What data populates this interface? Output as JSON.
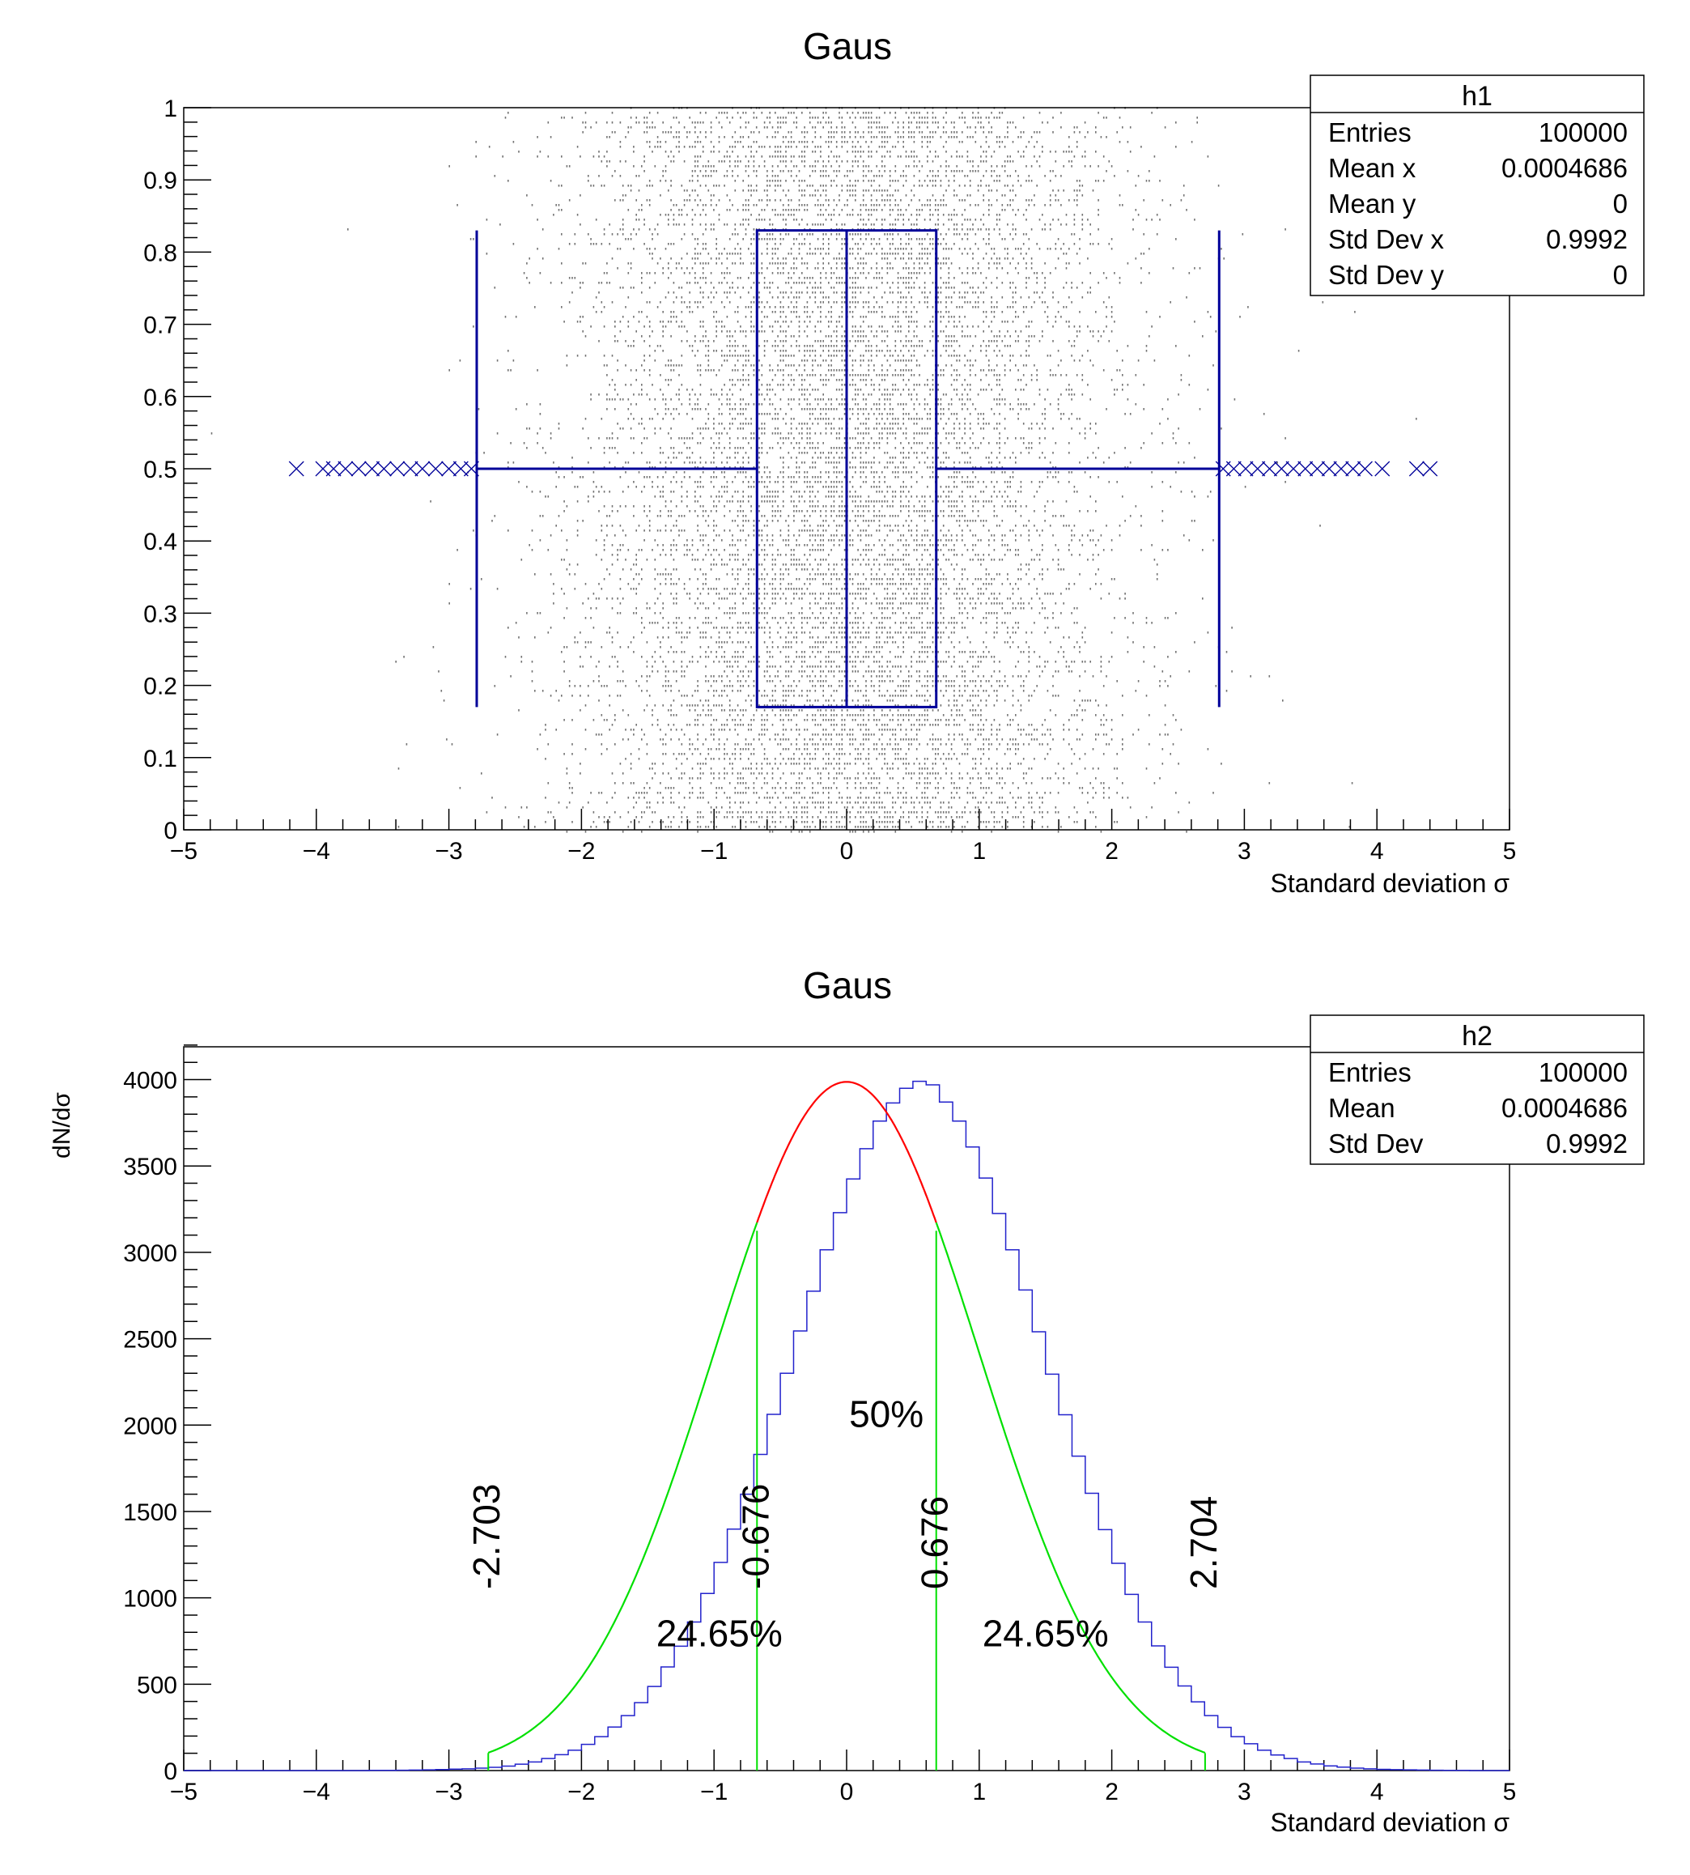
{
  "colors": {
    "box": "#000099",
    "hist": "#2222cc",
    "fit_core": "#ff0000",
    "fit_tails": "#00e000",
    "scatter": "#000000"
  },
  "chart_data": [
    {
      "type": "candle",
      "title": "Gaus",
      "xlabel": "Standard deviation σ",
      "ylabel": "",
      "xlim": [
        -5,
        5
      ],
      "ylim": [
        0,
        1
      ],
      "xticks": [
        "−5",
        "−4",
        "−3",
        "−2",
        "−1",
        "0",
        "1",
        "2",
        "3",
        "4",
        "5"
      ],
      "yticks": [
        "0",
        "0.1",
        "0.2",
        "0.3",
        "0.4",
        "0.5",
        "0.6",
        "0.7",
        "0.8",
        "0.9",
        "1"
      ],
      "box": {
        "whisker_low": -2.79,
        "q1": -0.676,
        "median": 0.0,
        "q3": 0.676,
        "whisker_high": 2.81,
        "y_center": 0.5,
        "y_low": 0.17,
        "y_high": 0.83
      },
      "outliers": [
        -4.15,
        -3.95,
        -3.87,
        -3.78,
        -3.68,
        -3.58,
        -3.49,
        -3.39,
        -3.29,
        -3.2,
        -3.1,
        -3.0,
        -2.91,
        -2.83,
        2.84,
        2.92,
        3.01,
        3.1,
        3.19,
        3.28,
        3.37,
        3.46,
        3.55,
        3.64,
        3.73,
        3.82,
        3.91,
        4.04,
        4.3,
        4.4
      ],
      "outlier_y": 0.5,
      "scatter": {
        "entries": 100000,
        "distribution": "gaussian",
        "mean": 0,
        "sigma": 1,
        "y": "uniform 0-1"
      },
      "stats": {
        "name": "h1",
        "rows": [
          {
            "label": "Entries",
            "value": "100000"
          },
          {
            "label": "Mean x",
            "value": "0.0004686"
          },
          {
            "label": "Mean y",
            "value": "0"
          },
          {
            "label": "Std Dev x",
            "value": "0.9992"
          },
          {
            "label": "Std Dev y",
            "value": "0"
          }
        ]
      }
    },
    {
      "type": "histogram",
      "title": "Gaus",
      "xlabel": "Standard deviation σ",
      "ylabel": "dN/dσ",
      "xlim": [
        -5,
        5
      ],
      "ylim": [
        0,
        4190
      ],
      "xticks": [
        "−5",
        "−4",
        "−3",
        "−2",
        "−1",
        "0",
        "1",
        "2",
        "3",
        "4",
        "5"
      ],
      "yticks": [
        "0",
        "500",
        "1000",
        "1500",
        "2000",
        "2500",
        "3000",
        "3500",
        "4000"
      ],
      "bin_low": -5,
      "bin_width": 0.1,
      "values": [
        0,
        0,
        0,
        0,
        0,
        0,
        0,
        0,
        0,
        0,
        0,
        0,
        0,
        0,
        1,
        1,
        2,
        3,
        4,
        6,
        8,
        10,
        14,
        19,
        26,
        37,
        50,
        70,
        92,
        118,
        152,
        196,
        252,
        318,
        393,
        487,
        600,
        720,
        860,
        1025,
        1205,
        1398,
        1600,
        1830,
        2062,
        2300,
        2545,
        2775,
        3015,
        3230,
        3425,
        3600,
        3760,
        3865,
        3950,
        3990,
        3970,
        3870,
        3760,
        3610,
        3430,
        3225,
        3015,
        2782,
        2540,
        2295,
        2060,
        1820,
        1605,
        1395,
        1200,
        1020,
        860,
        722,
        598,
        490,
        398,
        318,
        250,
        196,
        155,
        118,
        90,
        70,
        50,
        38,
        27,
        20,
        14,
        10,
        7,
        5,
        4,
        3,
        2,
        1,
        1,
        0,
        0,
        0
      ],
      "fits": [
        {
          "range": [
            -0.676,
            0.676
          ],
          "color": "#ff0000",
          "mean": 0,
          "sigma": 1,
          "norm": 3987
        },
        {
          "range": [
            -2.703,
            -0.676
          ],
          "color": "#00e000",
          "mean": 0,
          "sigma": 1,
          "norm": 3987
        },
        {
          "range": [
            0.676,
            2.704
          ],
          "color": "#00e000",
          "mean": 0,
          "sigma": 1,
          "norm": 3987
        }
      ],
      "vertical_lines": [
        -2.703,
        -0.676,
        0.676,
        2.704
      ],
      "annotations": [
        {
          "text": "-2.703",
          "x": -2.703,
          "y": 1050,
          "rotated": true
        },
        {
          "text": "-0.676",
          "x": -0.676,
          "y": 1050,
          "rotated": true
        },
        {
          "text": "0.676",
          "x": 0.676,
          "y": 1050,
          "rotated": true
        },
        {
          "text": "2.704",
          "x": 2.704,
          "y": 1050,
          "rotated": true
        },
        {
          "text": "50%",
          "x": 0.3,
          "y": 1990,
          "rotated": false
        },
        {
          "text": "24.65%",
          "x": -0.96,
          "y": 720,
          "rotated": false
        },
        {
          "text": "24.65%",
          "x": 1.5,
          "y": 720,
          "rotated": false
        }
      ],
      "stats": {
        "name": "h2",
        "rows": [
          {
            "label": "Entries",
            "value": "100000"
          },
          {
            "label": "Mean",
            "value": "0.0004686"
          },
          {
            "label": "Std Dev",
            "value": "0.9992"
          }
        ]
      }
    }
  ]
}
